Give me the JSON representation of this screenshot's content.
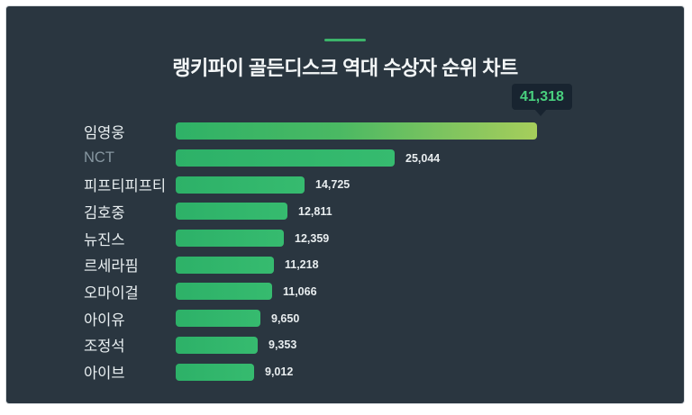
{
  "title": "랭키파이 골든디스크 역대 수상자 순위 차트",
  "badge": {
    "value": "41,318"
  },
  "chart_data": {
    "type": "bar",
    "orientation": "horizontal",
    "title": "랭키파이 골든디스크 역대 수상자 순위 차트",
    "categories": [
      "임영웅",
      "NCT",
      "피프티피프티",
      "김호중",
      "뉴진스",
      "르세라핌",
      "오마이걸",
      "아이유",
      "조정석",
      "아이브"
    ],
    "values": [
      41318,
      25044,
      14725,
      12811,
      12359,
      11218,
      11066,
      9650,
      9353,
      9012
    ],
    "value_labels": [
      "41,318",
      "25,044",
      "14,725",
      "12,811",
      "12,359",
      "11,218",
      "11,066",
      "9,650",
      "9,353",
      "9,012"
    ],
    "max_value": 41318,
    "highlighted_index": 0,
    "muted_label_index": 1,
    "legend": false,
    "grid": false,
    "axis_ticks": false,
    "value_label_position": "right-of-bar",
    "leader_value_shown_in": "tooltip-badge"
  },
  "colors": {
    "frame": "#ffffff",
    "panel_background": "#2a3640",
    "accent_dash": "#3cb46a",
    "title_text": "#f3f6f7",
    "bar_green": "#2fb56d",
    "leader_gradient_end": "#a6ce5b",
    "badge_background": "#182430",
    "badge_text": "#49d07e",
    "label_text": "#eaf0f2",
    "label_text_muted": "#8797a1",
    "value_text": "#e8edef"
  }
}
